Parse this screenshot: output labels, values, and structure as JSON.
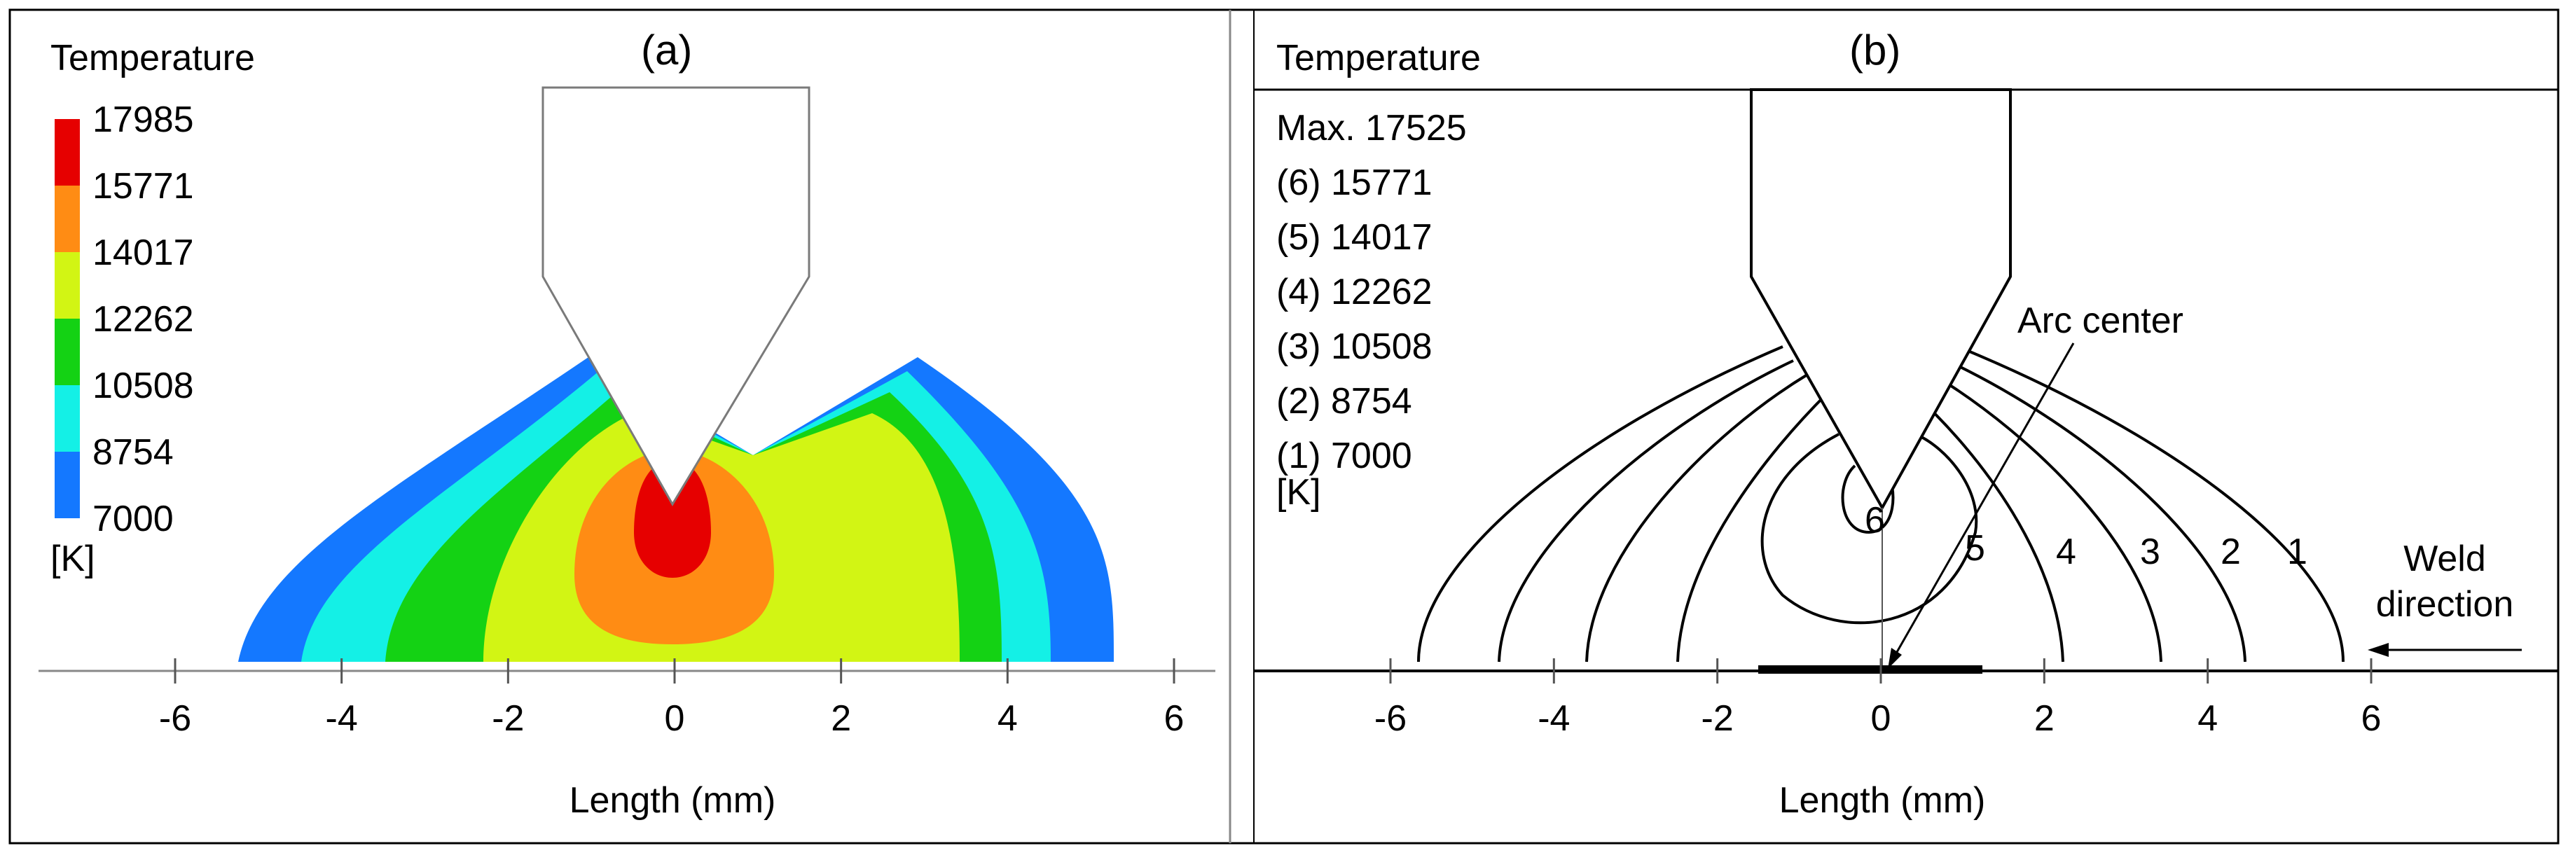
{
  "chart_data": [
    {
      "type": "heatmap",
      "panel_label": "(a)",
      "legend_title": "Temperature",
      "legend_levels": [
        "17985",
        "15771",
        "14017",
        "12262",
        "10508",
        "8754",
        "7000"
      ],
      "legend_unit": "[K]",
      "colors": [
        "#e60000",
        "#ff8c14",
        "#d2f514",
        "#14d214",
        "#14f0e6",
        "#1478ff",
        "#ffffff"
      ],
      "xlabel": "Length (mm)",
      "x_ticks": [
        "-6",
        "-4",
        "-2",
        "0",
        "2",
        "4",
        "6"
      ],
      "xlim": [
        -6,
        6
      ],
      "isotherm_half_widths_mm": [
        5.2,
        4.3,
        3.3,
        2.0,
        1.2,
        0.4
      ]
    },
    {
      "type": "contour",
      "panel_label": "(b)",
      "legend_title": "Temperature",
      "max_label": "Max. 17525",
      "levels": [
        {
          "id": "6",
          "label": "(6) 15771"
        },
        {
          "id": "5",
          "label": "(5) 14017"
        },
        {
          "id": "4",
          "label": "(4) 12262"
        },
        {
          "id": "3",
          "label": "(3) 10508"
        },
        {
          "id": "2",
          "label": "(2) 8754"
        },
        {
          "id": "1",
          "label": "(1) 7000"
        }
      ],
      "legend_unit": "[K]",
      "annotations": {
        "arc_center": "Arc center",
        "weld_direction_line1": "Weld",
        "weld_direction_line2": "direction"
      },
      "xlabel": "Length (mm)",
      "x_ticks": [
        "-6",
        "-4",
        "-2",
        "0",
        "2",
        "4",
        "6"
      ],
      "xlim": [
        -6,
        6
      ]
    }
  ]
}
